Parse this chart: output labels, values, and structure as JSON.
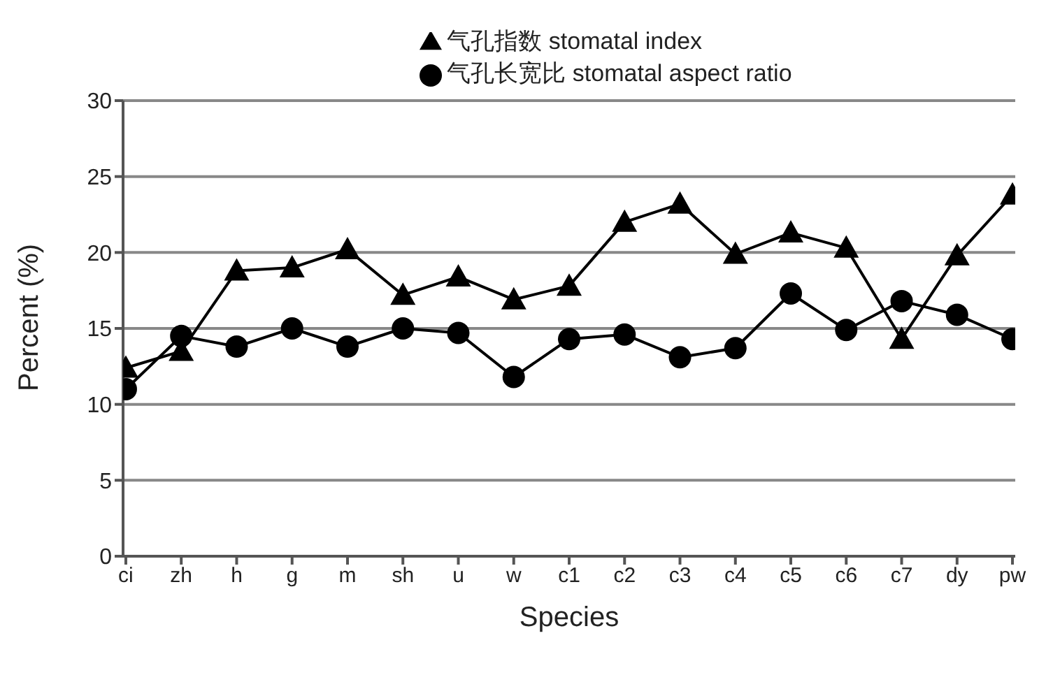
{
  "chart_data": {
    "type": "line",
    "xlabel": "Species",
    "ylabel": "Percent (%)",
    "categories": [
      "ci",
      "zh",
      "h",
      "g",
      "m",
      "sh",
      "u",
      "w",
      "c1",
      "c2",
      "c3",
      "c4",
      "c5",
      "c6",
      "c7",
      "dy",
      "pw"
    ],
    "series": [
      {
        "name": "气孔指数 stomatal index",
        "color": "#000000",
        "marker": "triangle",
        "values": [
          12.4,
          13.5,
          18.8,
          19.0,
          20.2,
          17.2,
          18.4,
          16.9,
          17.8,
          22.0,
          23.2,
          19.9,
          21.3,
          20.3,
          14.3,
          19.8,
          23.8
        ]
      },
      {
        "name": "气孔长宽比 stomatal aspect ratio",
        "color": "#000000",
        "marker": "circle",
        "values": [
          11.0,
          14.5,
          13.8,
          15.0,
          13.8,
          15.0,
          14.7,
          11.8,
          14.3,
          14.6,
          13.1,
          13.7,
          17.3,
          14.9,
          16.8,
          15.9,
          14.3
        ]
      }
    ],
    "ylim": [
      0,
      30
    ],
    "yticks": [
      0,
      5,
      10,
      15,
      20,
      25,
      30
    ],
    "grid": "y",
    "legend": "top",
    "line_style": "solid"
  }
}
